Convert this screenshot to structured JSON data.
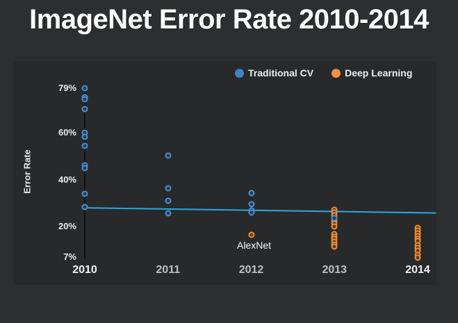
{
  "title": "ImageNet Error Rate 2010-2014",
  "legend": [
    {
      "label": "Traditional CV",
      "color": "#3d84c1"
    },
    {
      "label": "Deep Learning",
      "color": "#ee9240"
    }
  ],
  "axes": {
    "y_label": "Error Rate"
  },
  "chart_data": {
    "type": "scatter",
    "title": "ImageNet Error Rate 2010-2014",
    "xlabel": "",
    "ylabel": "Error Rate",
    "grid": false,
    "legend_position": "top-right",
    "x_ticks": [
      {
        "label": "2010",
        "value": 2010,
        "bold": true
      },
      {
        "label": "2011",
        "value": 2011,
        "bold": false
      },
      {
        "label": "2012",
        "value": 2012,
        "bold": false
      },
      {
        "label": "2013",
        "value": 2013,
        "bold": false
      },
      {
        "label": "2014",
        "value": 2014,
        "bold": true
      }
    ],
    "y_ticks": [
      {
        "label": "79%",
        "value": 79
      },
      {
        "label": "60%",
        "value": 60
      },
      {
        "label": "40%",
        "value": 40
      },
      {
        "label": "20%",
        "value": 20
      },
      {
        "label": "7%",
        "value": 7
      }
    ],
    "ylim": [
      5,
      82
    ],
    "xlim": [
      2010,
      2014.3
    ],
    "series": [
      {
        "name": "Deep Learning",
        "ring_color": "#ec8d3a",
        "fill_color": "#5d3a1d",
        "points": [
          [
            2012,
            16.4
          ],
          [
            2013,
            27.1
          ],
          [
            2013,
            25.9
          ],
          [
            2013,
            24.7
          ],
          [
            2013,
            23.6
          ],
          [
            2013,
            22.4
          ],
          [
            2013,
            21.2
          ],
          [
            2013,
            20.0
          ],
          [
            2013,
            16.8
          ],
          [
            2013,
            15.7
          ],
          [
            2013,
            14.7
          ],
          [
            2013,
            13.6
          ],
          [
            2013,
            12.5
          ],
          [
            2013,
            11.5
          ],
          [
            2014,
            19.6
          ],
          [
            2014,
            18.4
          ],
          [
            2014,
            17.2
          ],
          [
            2014,
            16.0
          ],
          [
            2014,
            14.8
          ],
          [
            2014,
            13.7
          ],
          [
            2014,
            12.2
          ],
          [
            2014,
            11.0
          ],
          [
            2014,
            9.8
          ],
          [
            2014,
            8.0
          ],
          [
            2014,
            6.8
          ]
        ]
      },
      {
        "name": "Traditional CV",
        "ring_color": "#4a90d2",
        "fill_color": "#1f3d57",
        "points": [
          [
            2010,
            79.0
          ],
          [
            2010,
            75.2
          ],
          [
            2010,
            74.1
          ],
          [
            2010,
            70.2
          ],
          [
            2010,
            60.1
          ],
          [
            2010,
            58.2
          ],
          [
            2010,
            54.4
          ],
          [
            2010,
            46.1
          ],
          [
            2010,
            44.8
          ],
          [
            2010,
            33.9
          ],
          [
            2010,
            28.2
          ],
          [
            2011,
            50.1
          ],
          [
            2011,
            36.2
          ],
          [
            2011,
            31.0
          ],
          [
            2011,
            25.8
          ],
          [
            2012,
            34.2
          ],
          [
            2012,
            29.6
          ],
          [
            2012,
            26.9
          ],
          [
            2012,
            25.9
          ],
          [
            2013,
            23.7
          ]
        ]
      }
    ],
    "trend_line": {
      "x1": 2010,
      "y1": 28.0,
      "x2": 2014.22,
      "y2": 25.8,
      "color": "#2aa9e0"
    },
    "axis_line": {
      "x": 2010,
      "y_top": 80.5,
      "y_bottom": 6.2,
      "color": "#121212"
    },
    "annotations": [
      {
        "text": "AlexNet",
        "x": 2012,
        "y": 16.4
      }
    ]
  }
}
